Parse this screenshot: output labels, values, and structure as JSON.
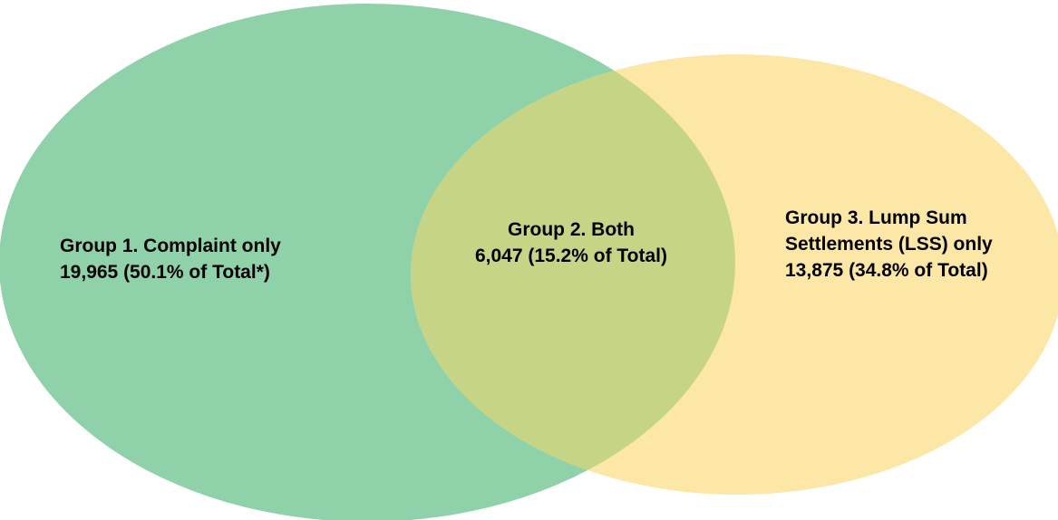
{
  "diagram": {
    "type": "venn",
    "colors": {
      "left_circle": "#8fd1a8",
      "right_circle": "#fce7a6",
      "overlap": "#c5d585"
    },
    "group1": {
      "line1": "Group 1. Complaint only",
      "line2": "19,965  (50.1% of Total*)",
      "count": 19965,
      "percent_of_total": 50.1
    },
    "group2": {
      "line1": "Group 2. Both",
      "line2": "6,047  (15.2% of Total)",
      "count": 6047,
      "percent_of_total": 15.2
    },
    "group3": {
      "line1": "Group 3. Lump Sum",
      "line2": "Settlements (LSS) only",
      "line3": "13,875  (34.8% of Total)",
      "count": 13875,
      "percent_of_total": 34.8
    }
  }
}
